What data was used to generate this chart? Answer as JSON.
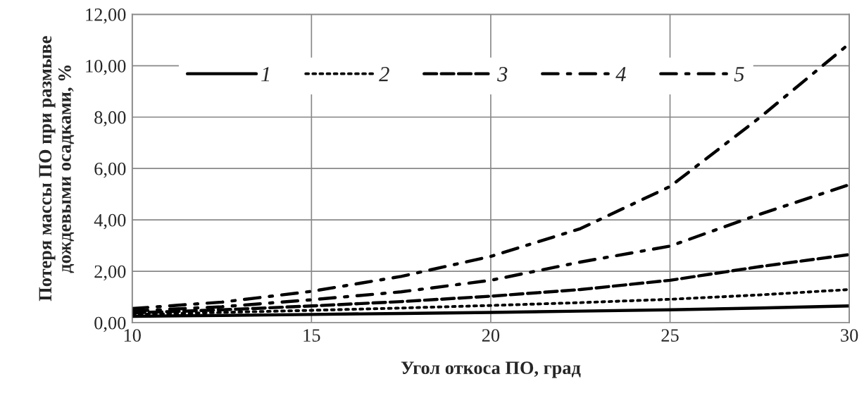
{
  "chart_data": {
    "type": "line",
    "xlabel": "Угол откоса ПО, град",
    "ylabel": "Потеря массы ПО при размыве дождевыми осадками, %",
    "x": [
      10,
      12.5,
      15,
      17.5,
      20,
      22.5,
      25,
      27.5,
      30
    ],
    "series": [
      {
        "name": "1",
        "color": "#000000",
        "line_style": "solid",
        "values": [
          0.25,
          0.28,
          0.32,
          0.36,
          0.4,
          0.45,
          0.5,
          0.57,
          0.65
        ]
      },
      {
        "name": "2",
        "color": "#000000",
        "line_style": "dotted",
        "values": [
          0.32,
          0.4,
          0.48,
          0.57,
          0.67,
          0.78,
          0.91,
          1.08,
          1.29
        ]
      },
      {
        "name": "3",
        "color": "#000000",
        "line_style": "dashed",
        "values": [
          0.38,
          0.5,
          0.65,
          0.82,
          1.03,
          1.29,
          1.65,
          2.18,
          2.65
        ]
      },
      {
        "name": "4",
        "color": "#000000",
        "line_style": "dashdot",
        "values": [
          0.45,
          0.62,
          0.89,
          1.2,
          1.65,
          2.36,
          2.98,
          4.22,
          5.37
        ]
      },
      {
        "name": "5",
        "color": "#000000",
        "line_style": "dashdot",
        "values": [
          0.55,
          0.8,
          1.22,
          1.8,
          2.58,
          3.66,
          5.3,
          7.98,
          10.86
        ]
      }
    ],
    "xlim": [
      10,
      30
    ],
    "xticks": [
      10,
      15,
      20,
      25,
      30
    ],
    "ylim": [
      0,
      12
    ],
    "yticks": [
      {
        "value": 0,
        "label": "0,00"
      },
      {
        "value": 2,
        "label": "2,00"
      },
      {
        "value": 4,
        "label": "4,00"
      },
      {
        "value": 6,
        "label": "6,00"
      },
      {
        "value": 8,
        "label": "8,00"
      },
      {
        "value": 10,
        "label": "10,00"
      },
      {
        "value": 12,
        "label": "12,00"
      }
    ],
    "grid": true,
    "legend": "top left",
    "marker": "none"
  }
}
